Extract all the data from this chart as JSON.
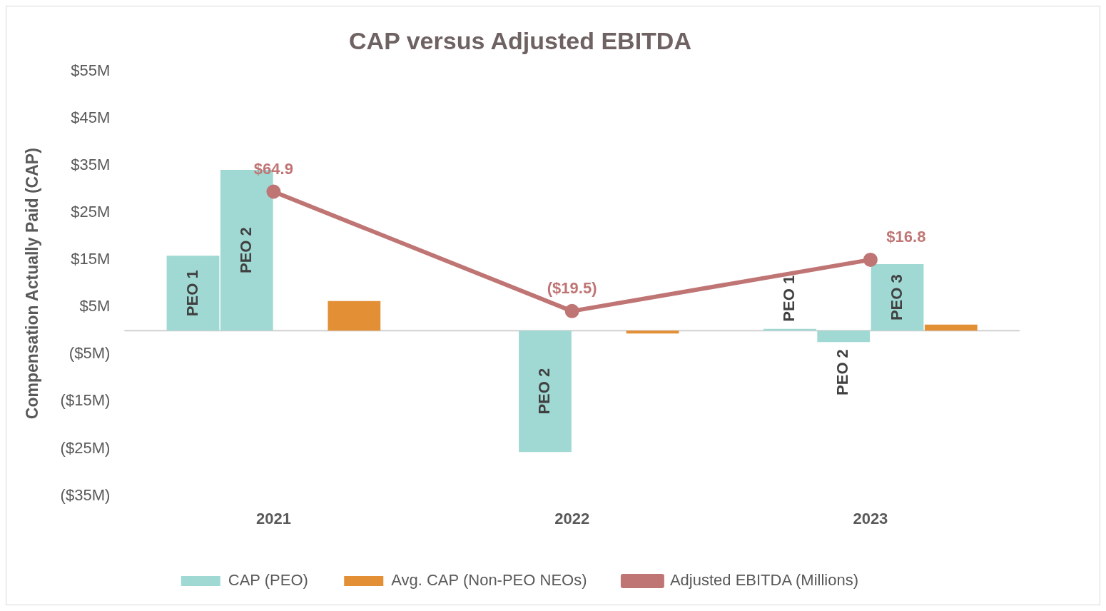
{
  "chart_data": {
    "type": "bar",
    "title": "CAP versus Adjusted EBITDA",
    "ylabel": "Compensation Actually Paid (CAP)",
    "categories": [
      "2021",
      "2022",
      "2023"
    ],
    "series": [
      {
        "name": "CAP (PEO)",
        "color": "#a0d9d3",
        "values": [
          15.9,
          null,
          0.4
        ],
        "value_labels": [
          "PEO 1",
          null,
          "PEO 1"
        ]
      },
      {
        "color": "#a0d9d3",
        "values": [
          34.1,
          -25.7,
          -2.4
        ],
        "value_labels": [
          "PEO 2",
          "PEO 2",
          "PEO 2"
        ]
      },
      {
        "color": "#a0d9d3",
        "values": [
          null,
          null,
          14.1
        ],
        "value_labels": [
          null,
          null,
          "PEO 3"
        ]
      },
      {
        "name": "Avg. CAP (Non-PEO NEOs)",
        "color": "#e28f36",
        "values": [
          6.3,
          -0.6,
          1.3
        ]
      },
      {
        "name": "Adjusted EBITDA (Millions)",
        "type": "line",
        "axis": "y2",
        "color": "#c07575",
        "marker": "circle",
        "values": [
          64.9,
          -19.5,
          16.8
        ],
        "value_labels": [
          "$64.9",
          "($19.5)",
          "$16.8"
        ]
      }
    ],
    "ylim": [
      -35,
      55
    ],
    "yticks": [
      {
        "value": 55,
        "label": "$55M"
      },
      {
        "value": 45,
        "label": "$45M"
      },
      {
        "value": 35,
        "label": "$35M"
      },
      {
        "value": 25,
        "label": "$25M"
      },
      {
        "value": 15,
        "label": "$15M"
      },
      {
        "value": 5,
        "label": "$5M"
      },
      {
        "value": -5,
        "label": "($5M)"
      },
      {
        "value": -15,
        "label": "($15M)"
      },
      {
        "value": -25,
        "label": "($25M)"
      },
      {
        "value": -35,
        "label": "($35M)"
      }
    ],
    "legend": "bottom"
  }
}
